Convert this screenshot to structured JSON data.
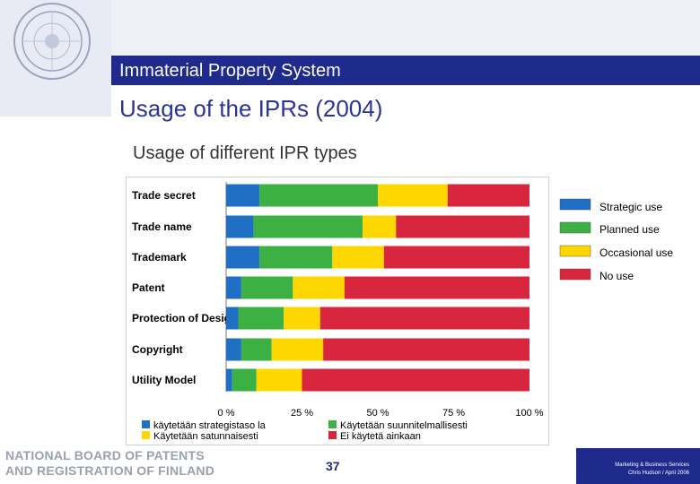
{
  "header": {
    "app_title": "Immaterial Property System",
    "page_title": "Usage of the IPRs (2004)",
    "subtitle": "Usage of different IPR types"
  },
  "footer": {
    "org_line1": "NATIONAL BOARD OF PATENTS",
    "org_line2": "AND REGISTRATION OF FINLAND",
    "page_number": "37",
    "credit_line1": "Marketing & Business Services",
    "credit_line2": "Chris Hudson / April 2006"
  },
  "chart_data": {
    "type": "bar",
    "orientation": "horizontal",
    "stacked": true,
    "percent": true,
    "categories": [
      "Trade secret",
      "Trade name",
      "Trademark",
      "Patent",
      "Protection of Design",
      "Copyright",
      "Utility Model"
    ],
    "series": [
      {
        "name": "Strategic use",
        "color": "#1f6fc5",
        "values": [
          11,
          9,
          11,
          5,
          4,
          5,
          2
        ]
      },
      {
        "name": "Planned use",
        "color": "#3cb043",
        "values": [
          39,
          36,
          24,
          17,
          15,
          10,
          8
        ]
      },
      {
        "name": "Occasional use",
        "color": "#ffd700",
        "values": [
          23,
          11,
          17,
          17,
          12,
          17,
          15
        ]
      },
      {
        "name": "No use",
        "color": "#d7263d",
        "values": [
          27,
          44,
          48,
          61,
          69,
          68,
          75
        ]
      }
    ],
    "xlim": [
      0,
      100
    ],
    "x_ticks": [
      "0 %",
      "25 %",
      "50 %",
      "75 %",
      "100 %"
    ],
    "legend_position": "right",
    "bottom_legend": [
      {
        "label": "käytetään strategistaso la",
        "color": "#1f6fc5"
      },
      {
        "label": "Käytetään suunnitelmallisesti",
        "color": "#3cb043"
      },
      {
        "label": "Käytetään satunnaisesti",
        "color": "#ffd700"
      },
      {
        "label": "Ei käytetä ainkaan",
        "color": "#d7263d"
      }
    ]
  }
}
